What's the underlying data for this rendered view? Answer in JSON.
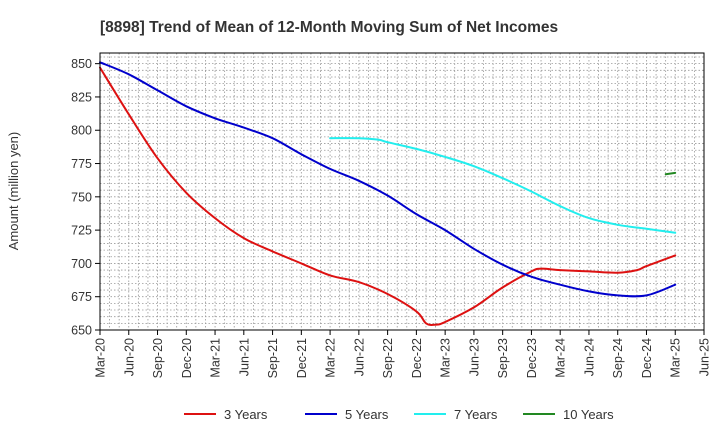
{
  "chart_data": {
    "type": "line",
    "title": "[8898]  Trend of Mean of 12-Month Moving Sum of Net Incomes",
    "xlabel": "",
    "ylabel": "Amount (million yen)",
    "ylim": [
      650,
      858
    ],
    "yticks": [
      650,
      675,
      700,
      725,
      750,
      775,
      800,
      825,
      850
    ],
    "x_ticks": [
      "Mar-20",
      "Jun-20",
      "Sep-20",
      "Dec-20",
      "Mar-21",
      "Jun-21",
      "Sep-21",
      "Dec-21",
      "Mar-22",
      "Jun-22",
      "Sep-22",
      "Dec-22",
      "Mar-23",
      "Jun-23",
      "Sep-23",
      "Dec-23",
      "Mar-24",
      "Jun-24",
      "Sep-24",
      "Dec-24",
      "Mar-25",
      "Jun-25"
    ],
    "grid": true,
    "legend_position": "bottom",
    "series": [
      {
        "name": "3 Years",
        "color": "#dd1111",
        "points": [
          [
            "Mar-20",
            847
          ],
          [
            "Jun-20",
            812
          ],
          [
            "Sep-20",
            779
          ],
          [
            "Dec-20",
            753
          ],
          [
            "Mar-21",
            734
          ],
          [
            "Jun-21",
            719
          ],
          [
            "Sep-21",
            709
          ],
          [
            "Dec-21",
            700
          ],
          [
            "Mar-22",
            691
          ],
          [
            "Jun-22",
            686
          ],
          [
            "Sep-22",
            677
          ],
          [
            "Dec-22",
            664
          ],
          [
            "Jan-23",
            655
          ],
          [
            "Feb-23",
            654
          ],
          [
            "Mar-23",
            656
          ],
          [
            "Jun-23",
            667
          ],
          [
            "Sep-23",
            682
          ],
          [
            "Dec-23",
            694
          ],
          [
            "Jan-24",
            696
          ],
          [
            "Mar-24",
            695
          ],
          [
            "Jun-24",
            694
          ],
          [
            "Sep-24",
            693
          ],
          [
            "Nov-24",
            695
          ],
          [
            "Dec-24",
            698
          ],
          [
            "Mar-25",
            706
          ]
        ]
      },
      {
        "name": "5 Years",
        "color": "#0000cc",
        "points": [
          [
            "Mar-20",
            851
          ],
          [
            "Jun-20",
            842
          ],
          [
            "Sep-20",
            830
          ],
          [
            "Dec-20",
            818
          ],
          [
            "Mar-21",
            809
          ],
          [
            "Jun-21",
            802
          ],
          [
            "Sep-21",
            794
          ],
          [
            "Dec-21",
            782
          ],
          [
            "Mar-22",
            771
          ],
          [
            "Jun-22",
            762
          ],
          [
            "Sep-22",
            751
          ],
          [
            "Dec-22",
            737
          ],
          [
            "Mar-23",
            725
          ],
          [
            "Jun-23",
            711
          ],
          [
            "Sep-23",
            699
          ],
          [
            "Dec-23",
            690
          ],
          [
            "Mar-24",
            684
          ],
          [
            "Jun-24",
            679
          ],
          [
            "Sep-24",
            676
          ],
          [
            "Dec-24",
            676
          ],
          [
            "Mar-25",
            684
          ]
        ]
      },
      {
        "name": "7 Years",
        "color": "#22eeee",
        "points": [
          [
            "Mar-22",
            794
          ],
          [
            "Jun-22",
            794
          ],
          [
            "Aug-22",
            793
          ],
          [
            "Sep-22",
            791
          ],
          [
            "Dec-22",
            786
          ],
          [
            "Mar-23",
            780
          ],
          [
            "Jun-23",
            773
          ],
          [
            "Sep-23",
            764
          ],
          [
            "Dec-23",
            754
          ],
          [
            "Mar-24",
            743
          ],
          [
            "Jun-24",
            734
          ],
          [
            "Sep-24",
            729
          ],
          [
            "Dec-24",
            726
          ],
          [
            "Mar-25",
            723
          ]
        ]
      },
      {
        "name": "10 Years",
        "color": "#228822",
        "points": [
          [
            "Feb-25",
            767
          ],
          [
            "Mar-25",
            768
          ]
        ]
      }
    ]
  }
}
